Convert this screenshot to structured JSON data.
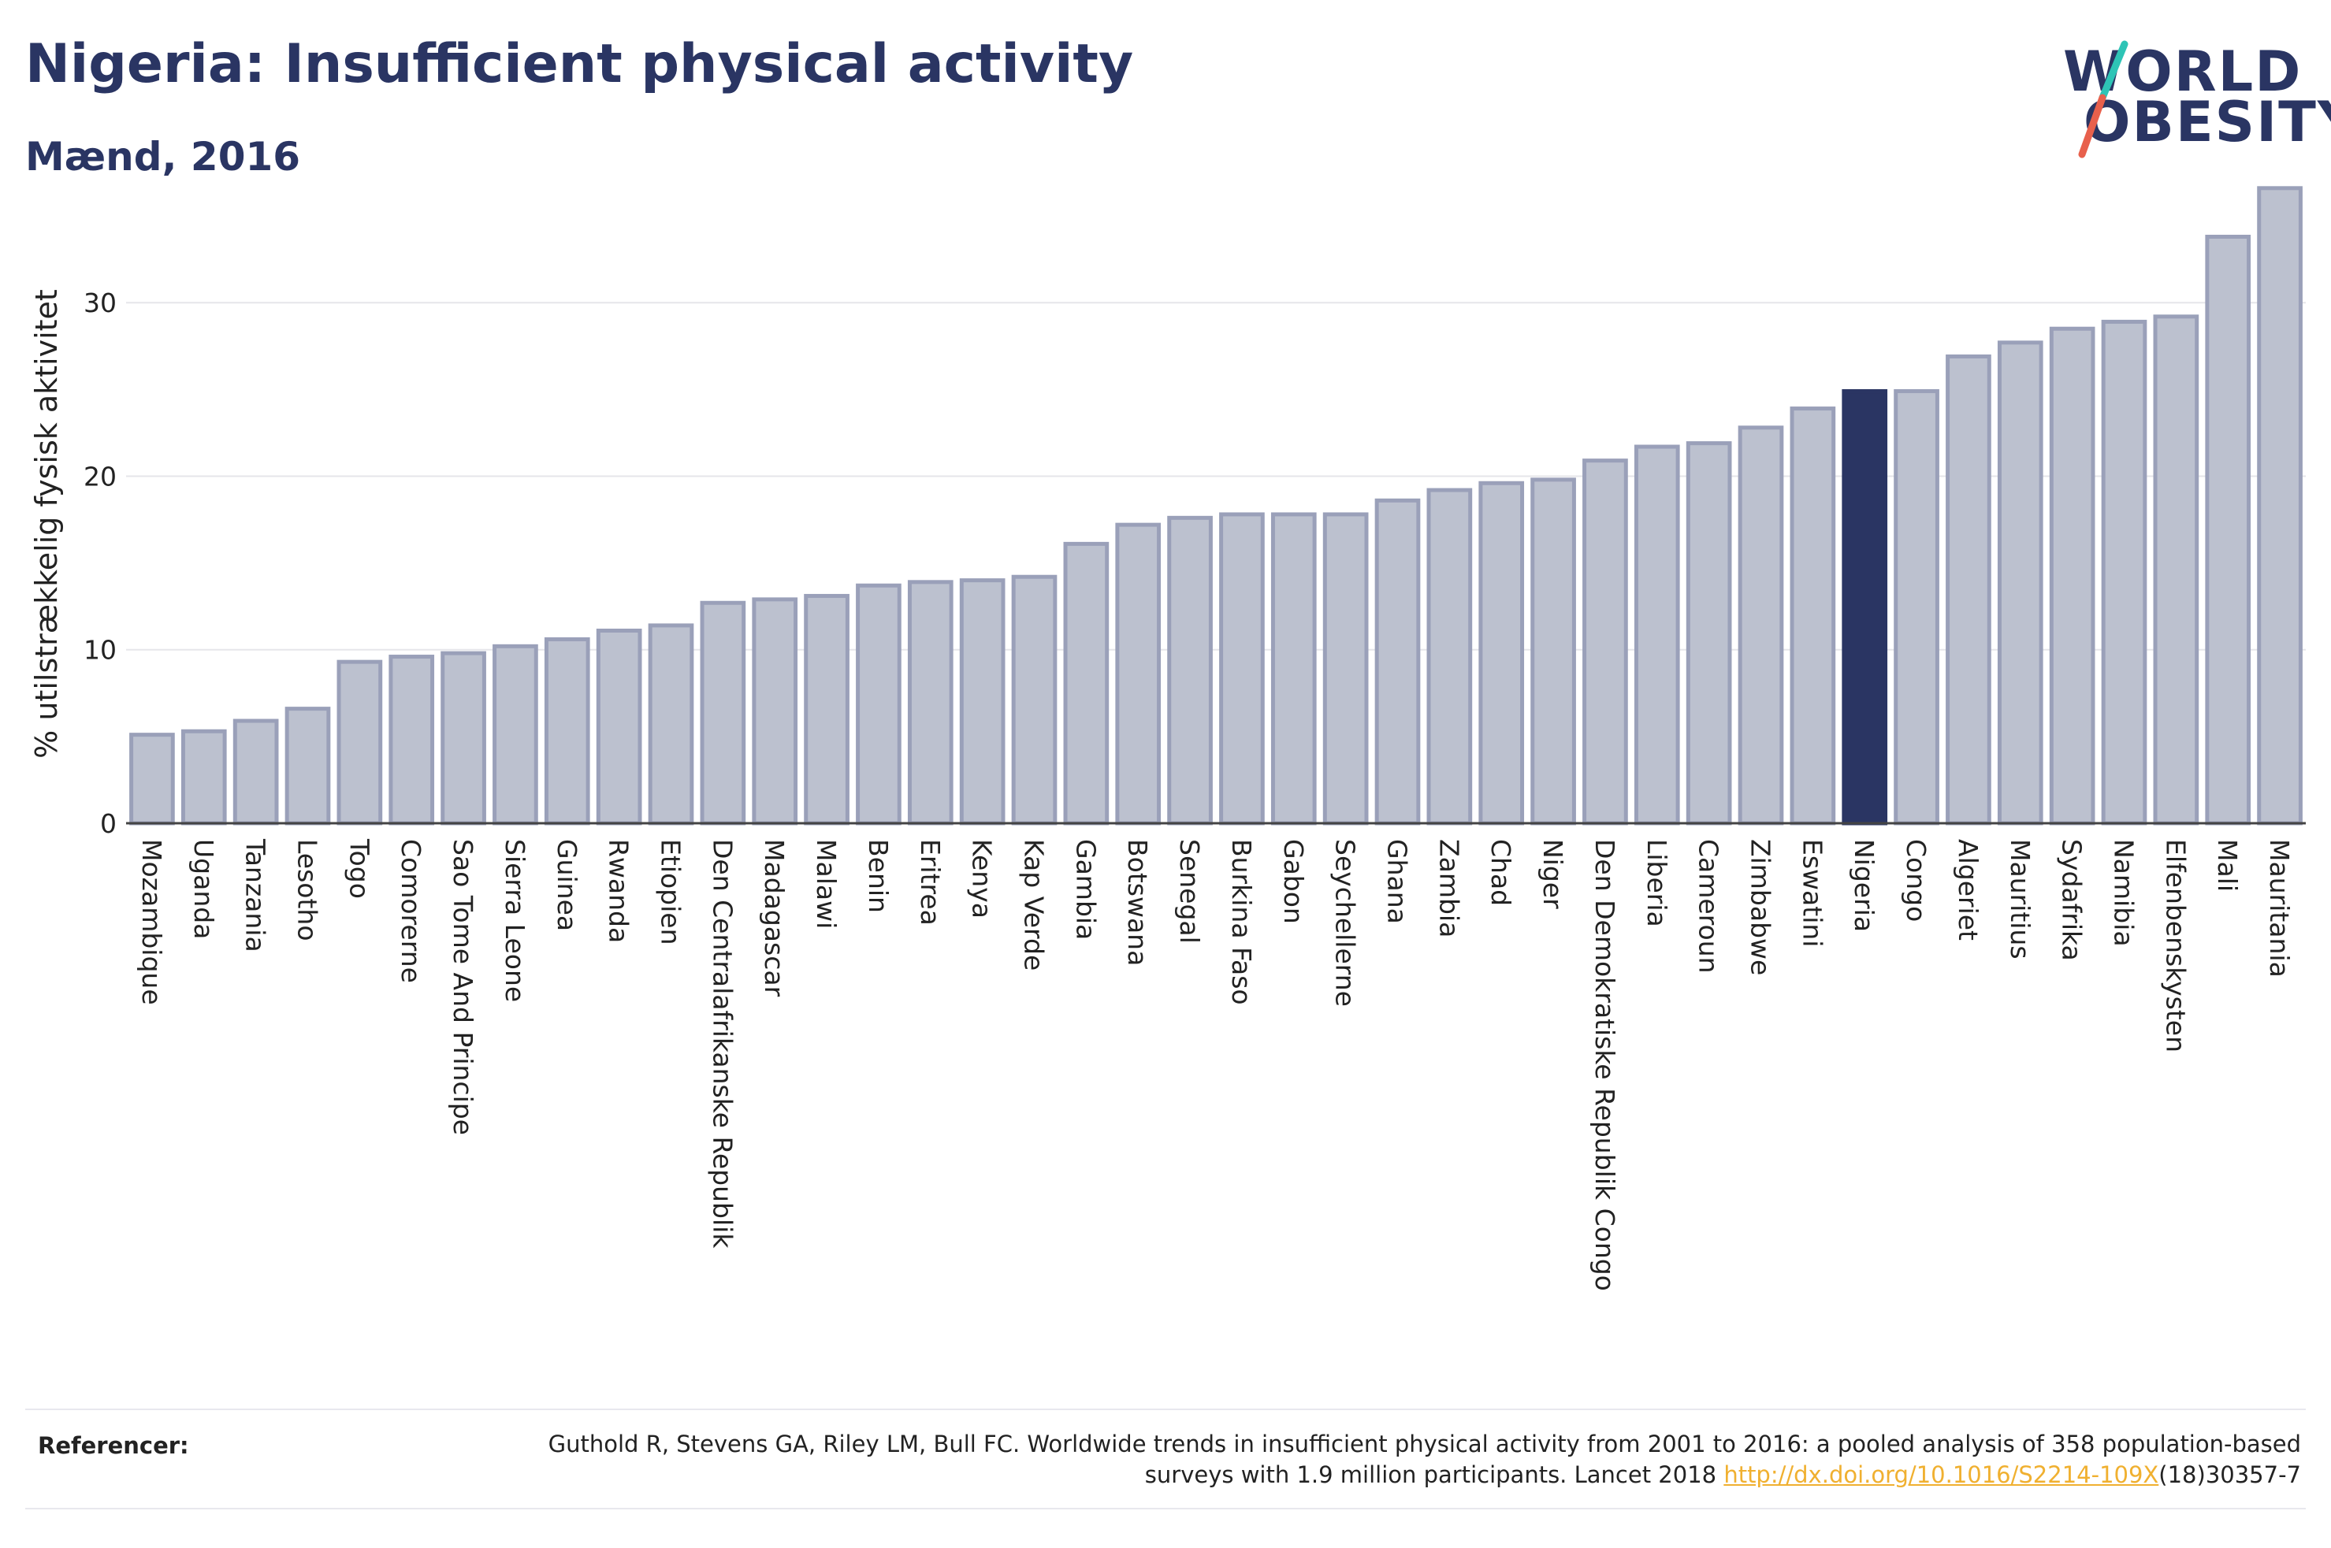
{
  "header": {
    "title": "Nigeria: Insufficient physical activity",
    "subtitle": "Mænd, 2016"
  },
  "logo": {
    "line1": "WORLD",
    "line2": "OBESITY",
    "slash_colors": [
      "#2ec4b6",
      "#e8604c"
    ]
  },
  "colors": {
    "bar": "#bcc1cf",
    "bar_outline": "#9aa0b9",
    "highlight": "#2a3563",
    "text": "#2a3563"
  },
  "chart_data": {
    "type": "bar",
    "title": "Nigeria: Insufficient physical activity",
    "subtitle": "Mænd, 2016",
    "xlabel": "",
    "ylabel": "% utilstrækkelig fysisk aktivitet",
    "ylim": [
      0,
      37
    ],
    "yticks": [
      0,
      10,
      20,
      30
    ],
    "grid": true,
    "highlight": "Nigeria",
    "categories": [
      "Mozambique",
      "Uganda",
      "Tanzania",
      "Lesotho",
      "Togo",
      "Comorerne",
      "Sao Tome And Principe",
      "Sierra Leone",
      "Guinea",
      "Rwanda",
      "Etiopien",
      "Den Centralafrikanske Republik",
      "Madagascar",
      "Malawi",
      "Benin",
      "Eritrea",
      "Kenya",
      "Kap Verde",
      "Gambia",
      "Botswana",
      "Senegal",
      "Burkina Faso",
      "Gabon",
      "Seychellerne",
      "Ghana",
      "Zambia",
      "Chad",
      "Niger",
      "Den Demokratiske Republik Congo",
      "Liberia",
      "Cameroun",
      "Zimbabwe",
      "Eswatini",
      "Nigeria",
      "Congo",
      "Algeriet",
      "Mauritius",
      "Sydafrika",
      "Namibia",
      "Elfenbenskysten",
      "Mali",
      "Mauritania"
    ],
    "values": [
      5.1,
      5.3,
      5.9,
      6.6,
      9.3,
      9.6,
      9.8,
      10.2,
      10.6,
      11.1,
      11.4,
      12.7,
      12.9,
      13.1,
      13.7,
      13.9,
      14.0,
      14.2,
      16.1,
      17.2,
      17.6,
      17.8,
      17.8,
      17.8,
      18.6,
      19.2,
      19.6,
      19.8,
      20.9,
      21.7,
      21.9,
      22.8,
      23.9,
      24.9,
      24.9,
      26.9,
      27.7,
      28.5,
      28.9,
      29.2,
      33.8,
      36.6
    ]
  },
  "references": {
    "label": "Referencer:",
    "text_before": "Guthold R, Stevens GA, Riley LM, Bull FC. Worldwide trends in insufficient physical activity from 2001 to 2016: a pooled analysis of 358 population-based surveys with 1.9 million participants. Lancet 2018 ",
    "link": "http://dx.doi.org/10.1016/S2214-109X",
    "text_after": "(18)30357-7"
  }
}
